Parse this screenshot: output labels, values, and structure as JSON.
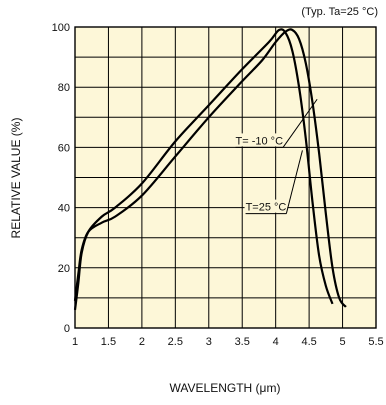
{
  "chart_data": {
    "type": "line",
    "note_text": "(Typ. Ta=25 °C)",
    "xlabel": "WAVELENGTH (μm)",
    "ylabel": "RELATIVE VALUE (%)",
    "xlim": [
      1,
      5.5
    ],
    "ylim": [
      0,
      100
    ],
    "x_ticks": [
      1,
      1.5,
      2,
      2.5,
      3,
      3.5,
      4,
      4.5,
      5,
      5.5
    ],
    "x_tick_labels": [
      "1",
      "1.5",
      "2",
      "2.5",
      "3",
      "3.5",
      "4",
      "4.5",
      "5",
      "5.5"
    ],
    "y_ticks": [
      0,
      20,
      40,
      60,
      80,
      100
    ],
    "y_tick_labels": [
      "0",
      "20",
      "40",
      "60",
      "80",
      "100"
    ],
    "grid": true,
    "plot_background": "#fdf7d8",
    "line_color": "#000000",
    "series": [
      {
        "name": "T= -10 °C",
        "points": [
          [
            1.0,
            9
          ],
          [
            1.05,
            18
          ],
          [
            1.1,
            26
          ],
          [
            1.2,
            32
          ],
          [
            1.4,
            35
          ],
          [
            1.6,
            37
          ],
          [
            2.0,
            44
          ],
          [
            2.5,
            57
          ],
          [
            3.0,
            70
          ],
          [
            3.5,
            82
          ],
          [
            3.8,
            89
          ],
          [
            4.0,
            95
          ],
          [
            4.15,
            98.5
          ],
          [
            4.25,
            99
          ],
          [
            4.35,
            96
          ],
          [
            4.45,
            88
          ],
          [
            4.55,
            75
          ],
          [
            4.65,
            58
          ],
          [
            4.75,
            38
          ],
          [
            4.85,
            20
          ],
          [
            4.95,
            10
          ],
          [
            5.05,
            7
          ]
        ]
      },
      {
        "name": "T=25 °C",
        "points": [
          [
            1.0,
            6
          ],
          [
            1.05,
            15
          ],
          [
            1.1,
            25
          ],
          [
            1.2,
            32
          ],
          [
            1.4,
            37
          ],
          [
            1.6,
            40
          ],
          [
            2.0,
            48
          ],
          [
            2.5,
            62
          ],
          [
            3.0,
            74
          ],
          [
            3.5,
            86
          ],
          [
            3.9,
            95
          ],
          [
            4.05,
            99
          ],
          [
            4.15,
            98
          ],
          [
            4.25,
            92
          ],
          [
            4.35,
            80
          ],
          [
            4.45,
            63
          ],
          [
            4.55,
            42
          ],
          [
            4.65,
            24
          ],
          [
            4.75,
            14
          ],
          [
            4.85,
            8
          ]
        ]
      }
    ],
    "annotations": [
      {
        "text": "T= -10 °C",
        "label_at": [
          3.4,
          60
        ],
        "line_to": [
          4.62,
          76
        ]
      },
      {
        "text": "T=25 °C",
        "label_at": [
          3.55,
          38
        ],
        "line_to": [
          4.4,
          59
        ]
      }
    ]
  }
}
